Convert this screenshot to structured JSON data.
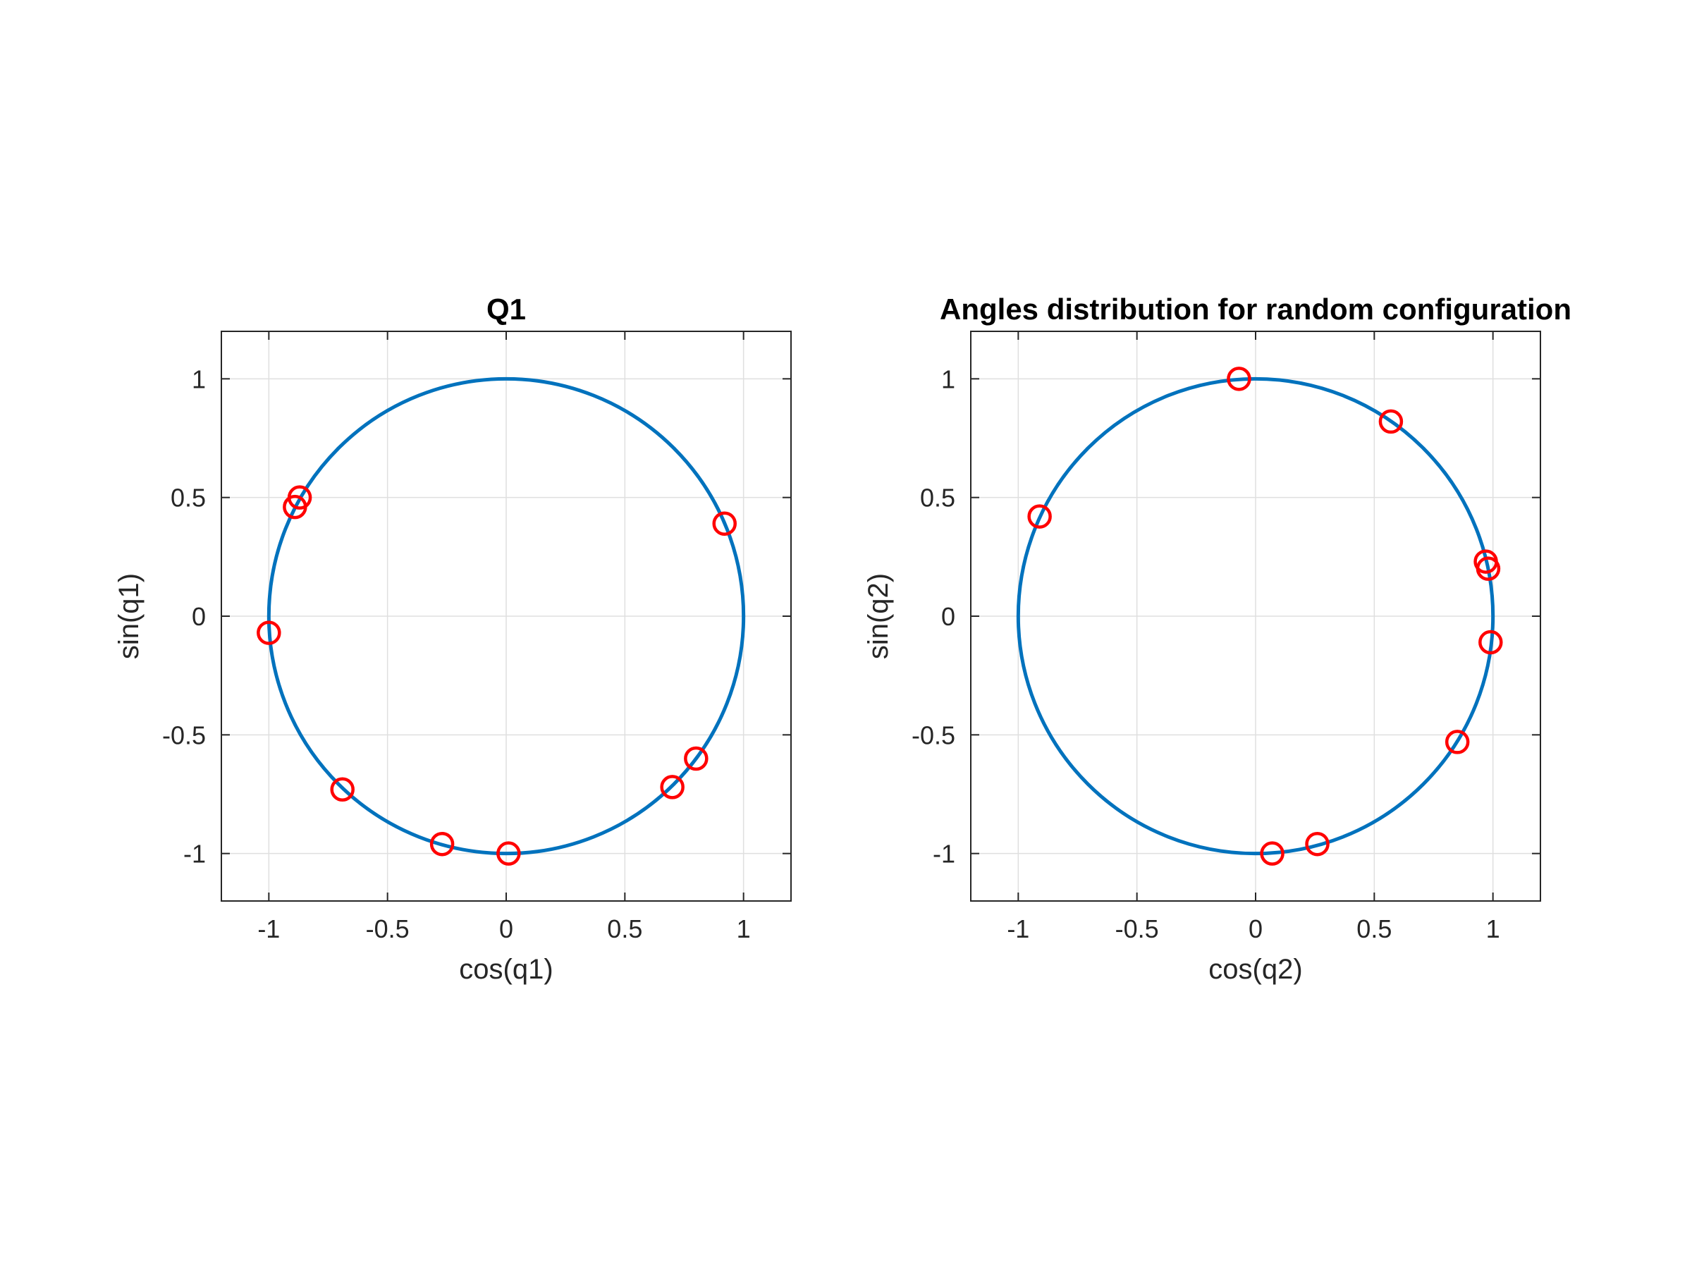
{
  "figure": {
    "background": "#ffffff"
  },
  "chart_data": [
    {
      "type": "scatter",
      "title": "Q1",
      "xlabel": "cos(q1)",
      "ylabel": "sin(q1)",
      "xlim": [
        -1.2,
        1.2
      ],
      "ylim": [
        -1.2,
        1.2
      ],
      "x_ticks": [
        -1,
        -0.5,
        0,
        0.5,
        1
      ],
      "y_ticks": [
        -1,
        -0.5,
        0,
        0.5,
        1
      ],
      "x_tick_labels": [
        "-1",
        "-0.5",
        "0",
        "0.5",
        "1"
      ],
      "y_tick_labels": [
        "-1",
        "-0.5",
        "0",
        "0.5",
        "1"
      ],
      "grid": true,
      "reference_curve": {
        "shape": "unit-circle",
        "color": "#0072BD"
      },
      "marker": {
        "shape": "circle",
        "color": "#FF0000"
      },
      "points": [
        {
          "x": -0.87,
          "y": 0.5
        },
        {
          "x": -0.89,
          "y": 0.46
        },
        {
          "x": 0.92,
          "y": 0.39
        },
        {
          "x": -1.0,
          "y": -0.07
        },
        {
          "x": 0.8,
          "y": -0.6
        },
        {
          "x": 0.7,
          "y": -0.72
        },
        {
          "x": -0.69,
          "y": -0.73
        },
        {
          "x": -0.27,
          "y": -0.96
        },
        {
          "x": 0.01,
          "y": -1.0
        }
      ]
    },
    {
      "type": "scatter",
      "title": "Angles distribution for random configuration",
      "xlabel": "cos(q2)",
      "ylabel": "sin(q2)",
      "xlim": [
        -1.2,
        1.2
      ],
      "ylim": [
        -1.2,
        1.2
      ],
      "x_ticks": [
        -1,
        -0.5,
        0,
        0.5,
        1
      ],
      "y_ticks": [
        -1,
        -0.5,
        0,
        0.5,
        1
      ],
      "x_tick_labels": [
        "-1",
        "-0.5",
        "0",
        "0.5",
        "1"
      ],
      "y_tick_labels": [
        "-1",
        "-0.5",
        "0",
        "0.5",
        "1"
      ],
      "grid": true,
      "reference_curve": {
        "shape": "unit-circle",
        "color": "#0072BD"
      },
      "marker": {
        "shape": "circle",
        "color": "#FF0000"
      },
      "points": [
        {
          "x": -0.07,
          "y": 1.0
        },
        {
          "x": 0.57,
          "y": 0.82
        },
        {
          "x": -0.91,
          "y": 0.42
        },
        {
          "x": 0.97,
          "y": 0.23
        },
        {
          "x": 0.98,
          "y": 0.2
        },
        {
          "x": 0.99,
          "y": -0.11
        },
        {
          "x": 0.85,
          "y": -0.53
        },
        {
          "x": 0.26,
          "y": -0.96
        },
        {
          "x": 0.07,
          "y": -1.0
        }
      ]
    }
  ]
}
